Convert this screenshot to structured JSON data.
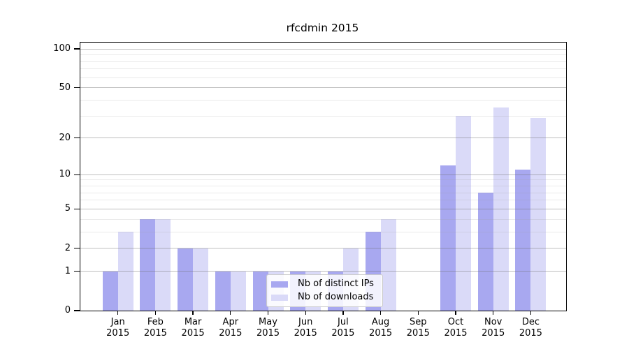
{
  "chart_data": {
    "type": "bar",
    "title": "rfcdmin 2015",
    "categories": [
      "Jan",
      "Feb",
      "Mar",
      "Apr",
      "May",
      "Jun",
      "Jul",
      "Aug",
      "Sep",
      "Oct",
      "Nov",
      "Dec"
    ],
    "x_year": "2015",
    "series": [
      {
        "name": "Nb of distinct IPs",
        "color": "#a8a8f0",
        "values": [
          1,
          4,
          2,
          1,
          1,
          1,
          1,
          3,
          0,
          12,
          7,
          11
        ]
      },
      {
        "name": "Nb of downloads",
        "color": "#dadaf8",
        "values": [
          3,
          4,
          2,
          1,
          1,
          1,
          2,
          4,
          0,
          30,
          35,
          29
        ]
      }
    ],
    "xlabel": "",
    "ylabel": "",
    "y_scale": "log1p",
    "ylim": [
      0,
      112
    ],
    "y_major_ticks": [
      0,
      1,
      2,
      5,
      10,
      20,
      50,
      100
    ],
    "y_minor_gridlines": [
      3,
      4,
      6,
      7,
      8,
      9,
      30,
      40,
      60,
      70,
      80,
      90
    ],
    "grid": true,
    "legend_position": "lower-center"
  },
  "colors": {
    "background": "#ffffff",
    "axis": "#000000",
    "major_gridline": "#bdbdbd",
    "minor_gridline": "#eaeaea",
    "bar_distinct_ips": "#a8a8f0",
    "bar_downloads": "#dadaf8"
  }
}
